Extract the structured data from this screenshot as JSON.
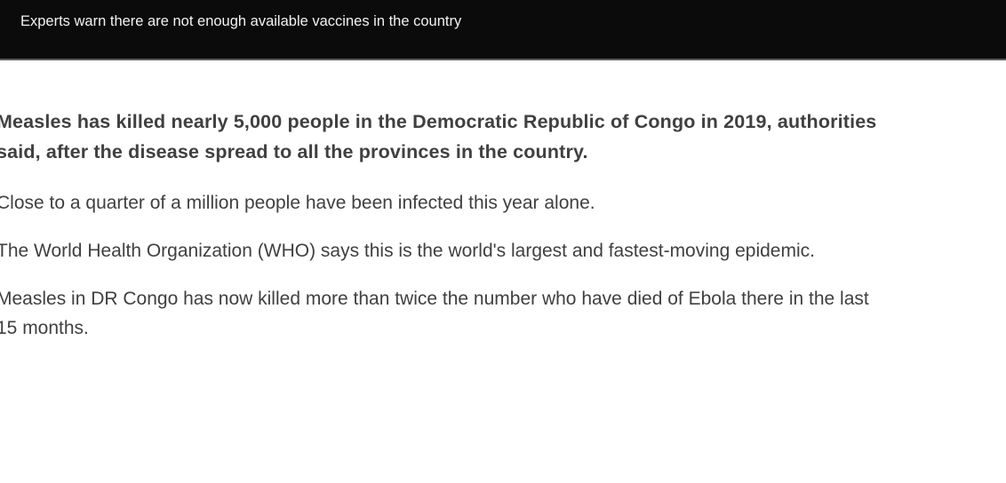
{
  "image_caption": "Experts warn there are not enough available vaccines in the country",
  "article": {
    "lead": "Measles has killed nearly 5,000 people in the Democratic Republic of Congo in 2019, authorities said, after the disease spread to all the provinces in the country.",
    "paragraphs": [
      "Close to a quarter of a million people have been infected this year alone.",
      "The World Health Organization (WHO) says this is the world's largest and fastest-moving epidemic.",
      "Measles in DR Congo has now killed more than twice the number who have died of Ebola there in the last 15 months."
    ]
  }
}
